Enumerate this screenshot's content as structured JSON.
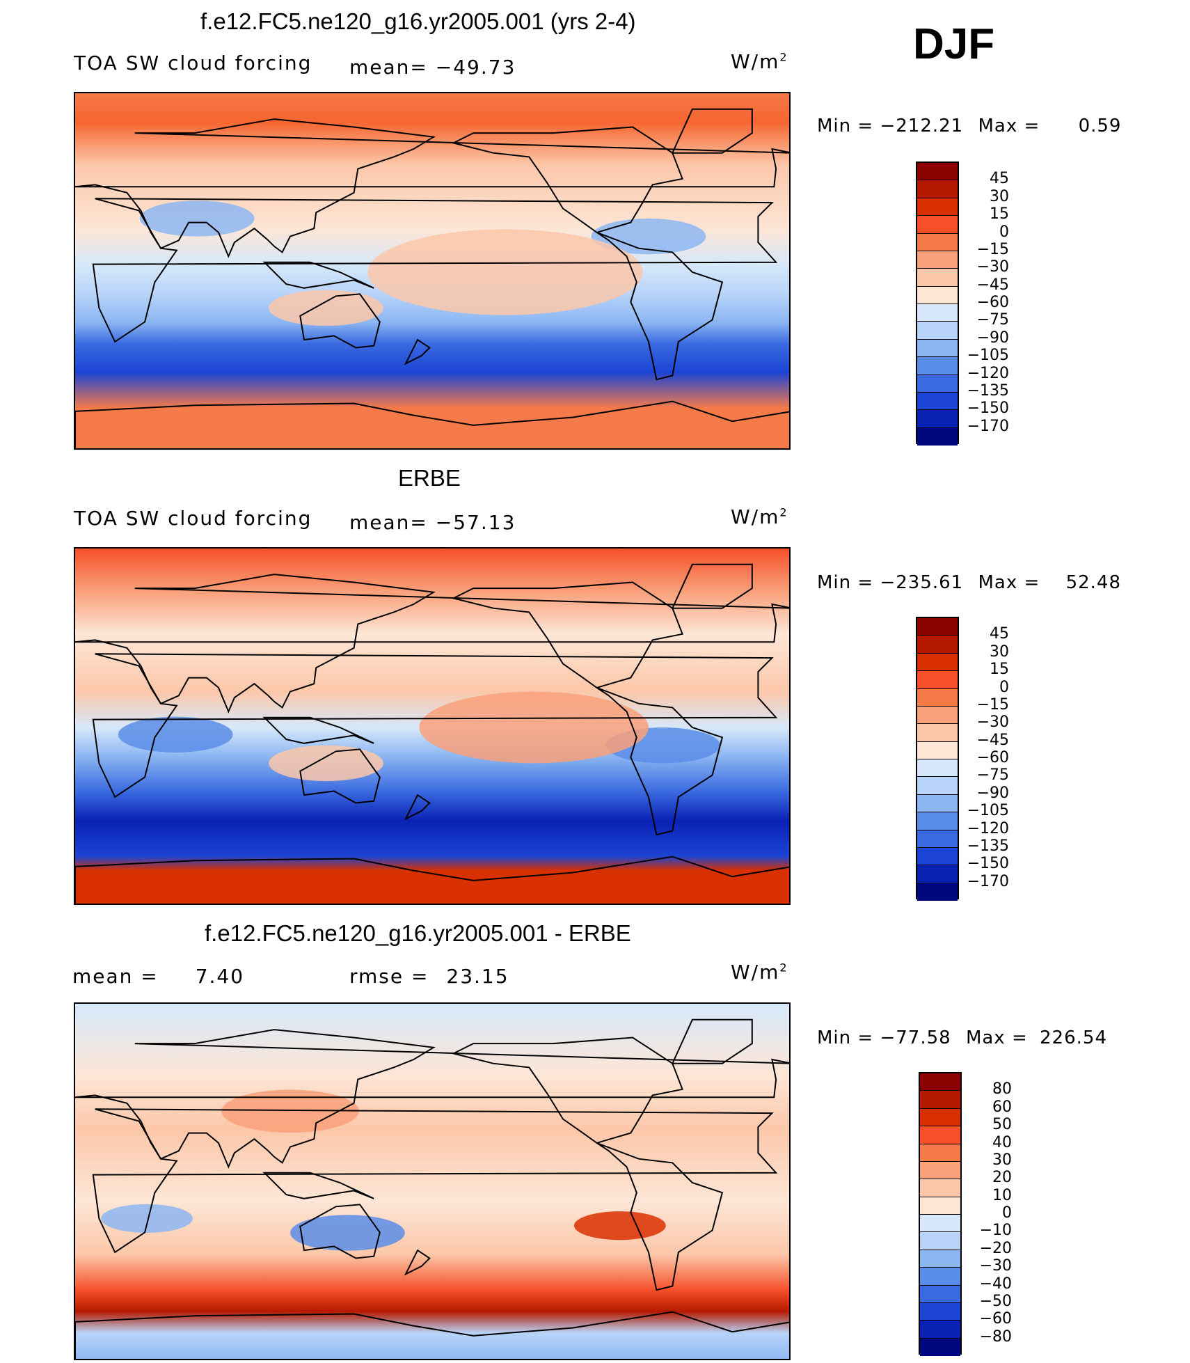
{
  "season": "DJF",
  "chart_data": [
    {
      "type": "heatmap",
      "title": "f.e12.FC5.ne120_g16.yr2005.001 (yrs 2-4)",
      "variable": "TOA SW cloud forcing",
      "mean_label": "mean=",
      "mean": "−49.73",
      "units": "W/m",
      "units_sup": "2",
      "min_label": "Min  =",
      "min": "−212.21",
      "max_label": "Max  =",
      "max": "0.59",
      "colorbar_levels": [
        "45",
        "30",
        "15",
        "0",
        "−15",
        "−30",
        "−45",
        "−60",
        "−75",
        "−90",
        "−105",
        "−120",
        "−135",
        "−150",
        "−170"
      ],
      "colorbar_colors": [
        "#8b0000",
        "#b51a00",
        "#d93000",
        "#f5502a",
        "#f57a4a",
        "#f9a07a",
        "#fcc7a9",
        "#fde6d6",
        "#d6e8fa",
        "#b8d4f8",
        "#8cb6f2",
        "#5a8de8",
        "#3a6ae0",
        "#1c44d4",
        "#0a22b4",
        "#000880"
      ],
      "basemap": "world coastlines, Pacific-centered (0°–360°)"
    },
    {
      "type": "heatmap",
      "title": "ERBE",
      "variable": "TOA SW cloud forcing",
      "mean_label": "mean=",
      "mean": "−57.13",
      "units": "W/m",
      "units_sup": "2",
      "min_label": "Min  =",
      "min": "−235.61",
      "max_label": "Max  =",
      "max": "52.48",
      "colorbar_levels": [
        "45",
        "30",
        "15",
        "0",
        "−15",
        "−30",
        "−45",
        "−60",
        "−75",
        "−90",
        "−105",
        "−120",
        "−135",
        "−150",
        "−170"
      ],
      "colorbar_colors": [
        "#8b0000",
        "#b51a00",
        "#d93000",
        "#f5502a",
        "#f57a4a",
        "#f9a07a",
        "#fcc7a9",
        "#fde6d6",
        "#d6e8fa",
        "#b8d4f8",
        "#8cb6f2",
        "#5a8de8",
        "#3a6ae0",
        "#1c44d4",
        "#0a22b4",
        "#000880"
      ],
      "basemap": "world coastlines, Pacific-centered (0°–360°)"
    },
    {
      "type": "heatmap",
      "title": "f.e12.FC5.ne120_g16.yr2005.001 - ERBE",
      "mean_label": "mean  =",
      "mean": "7.40",
      "rmse_label": "rmse  =",
      "rmse": "23.15",
      "units": "W/m",
      "units_sup": "2",
      "min_label": "Min  =",
      "min": "−77.58",
      "max_label": "Max  =",
      "max": "226.54",
      "colorbar_levels": [
        "80",
        "60",
        "50",
        "40",
        "30",
        "20",
        "10",
        "0",
        "−10",
        "−20",
        "−30",
        "−40",
        "−50",
        "−60",
        "−80"
      ],
      "colorbar_colors": [
        "#8b0000",
        "#b51a00",
        "#d93000",
        "#f5502a",
        "#f57a4a",
        "#f9a07a",
        "#fcc7a9",
        "#fde6d6",
        "#d6e8fa",
        "#b8d4f8",
        "#8cb6f2",
        "#5a8de8",
        "#3a6ae0",
        "#1c44d4",
        "#0a22b4",
        "#000880"
      ],
      "basemap": "world coastlines, Pacific-centered (0°–360°)"
    }
  ]
}
